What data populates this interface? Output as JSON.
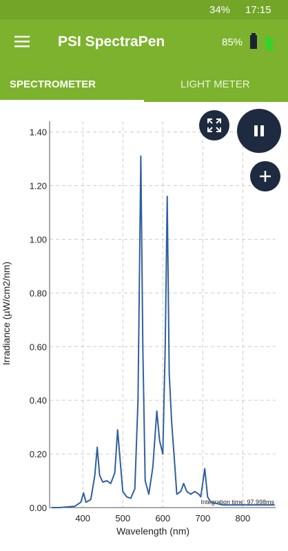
{
  "status_bar": {
    "battery": "34%",
    "time": "17:15"
  },
  "app_bar": {
    "title": "PSI SpectraPen",
    "device_battery": "85%"
  },
  "tabs": [
    "SPECTROMETER",
    "LIGHT METER"
  ],
  "integration_time": "Integration time: 97.998ms",
  "chart_data": {
    "type": "line",
    "x_label": "Wavelength (nm)",
    "y_label": "Irradiance (µW/cm2/nm)",
    "color": "#2f5f9e",
    "grid": true,
    "x": [
      322,
      340,
      380,
      395,
      402,
      408,
      420,
      430,
      436,
      442,
      450,
      460,
      470,
      480,
      487,
      492,
      500,
      510,
      520,
      530,
      538,
      545,
      550,
      556,
      565,
      575,
      585,
      592,
      600,
      606,
      611,
      616,
      622,
      628,
      635,
      645,
      652,
      660,
      670,
      680,
      690,
      695,
      705,
      712,
      720,
      750,
      800,
      880
    ],
    "values": [
      0.0,
      0.0,
      0.005,
      0.02,
      0.055,
      0.02,
      0.03,
      0.12,
      0.225,
      0.12,
      0.095,
      0.1,
      0.09,
      0.13,
      0.29,
      0.2,
      0.06,
      0.04,
      0.035,
      0.07,
      0.4,
      1.31,
      0.6,
      0.1,
      0.05,
      0.15,
      0.36,
      0.25,
      0.2,
      0.6,
      1.16,
      0.5,
      0.32,
      0.2,
      0.05,
      0.06,
      0.09,
      0.06,
      0.05,
      0.06,
      0.05,
      0.04,
      0.145,
      0.04,
      0.02,
      0.01,
      0.01,
      0.01
    ],
    "xlim": [
      317,
      882
    ],
    "ylim": [
      0,
      1.44
    ],
    "xticks": [
      400,
      500,
      600,
      700,
      800
    ],
    "yticks": [
      {
        "value": 0,
        "label": "0.00"
      },
      {
        "value": 0.2,
        "label": "0.20"
      },
      {
        "value": 0.4,
        "label": "0.40"
      },
      {
        "value": 0.6,
        "label": "0.60"
      },
      {
        "value": 0.8,
        "label": "0.80"
      },
      {
        "value": 1.0,
        "label": "1.00"
      },
      {
        "value": 1.2,
        "label": "1.20"
      },
      {
        "value": 1.4,
        "label": "1.40"
      }
    ]
  }
}
